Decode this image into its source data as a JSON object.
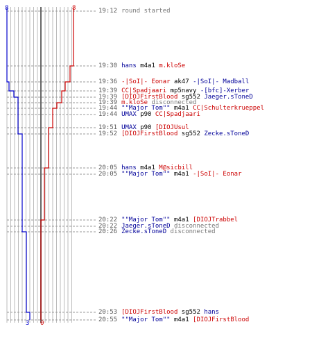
{
  "colors": {
    "team_red": "#cc0000",
    "team_blue": "#0000cc",
    "divider": "#666666",
    "grid": "#bbbbbb"
  },
  "counts": {
    "blue_start": "8",
    "red_start": "8",
    "blue_end": "3",
    "red_end": "0"
  },
  "events": [
    {
      "time": "19:12",
      "parts": [
        {
          "text": "round started",
          "color": "gray"
        }
      ]
    },
    {
      "time": "19:30",
      "parts": [
        {
          "text": "hans",
          "color": "blue"
        },
        {
          "text": " m4a1 ",
          "color": "black"
        },
        {
          "text": "m.kloSe",
          "color": "red"
        }
      ]
    },
    {
      "time": "19:36",
      "parts": [
        {
          "text": "-|SoI|- Eonar",
          "color": "red"
        },
        {
          "text": " ak47 ",
          "color": "black"
        },
        {
          "text": "-|SoI|- Madball",
          "color": "blue"
        }
      ]
    },
    {
      "time": "19:39",
      "parts": [
        {
          "text": "CC|Spadjaari",
          "color": "red"
        },
        {
          "text": " mp5navy ",
          "color": "black"
        },
        {
          "text": "-[bfc]-Xerber",
          "color": "blue"
        }
      ]
    },
    {
      "time": "19:39",
      "parts": [
        {
          "text": "[DIOJFirstBlood",
          "color": "red"
        },
        {
          "text": " sg552 ",
          "color": "black"
        },
        {
          "text": "Jaeger.sToneD",
          "color": "blue"
        }
      ]
    },
    {
      "time": "19:39",
      "parts": [
        {
          "text": "m.kloSe",
          "color": "red"
        },
        {
          "text": " disconnected",
          "color": "gray"
        }
      ]
    },
    {
      "time": "19:44",
      "parts": [
        {
          "text": "\"\"Major Tom\"\"",
          "color": "blue"
        },
        {
          "text": " m4a1 ",
          "color": "black"
        },
        {
          "text": "CC|Schulterkrueppel",
          "color": "red"
        }
      ]
    },
    {
      "time": "19:44",
      "parts": [
        {
          "text": "UMAX",
          "color": "blue"
        },
        {
          "text": " p90 ",
          "color": "black"
        },
        {
          "text": "CC|Spadjaari",
          "color": "red"
        }
      ]
    },
    {
      "time": "19:51",
      "parts": [
        {
          "text": "UMAX",
          "color": "blue"
        },
        {
          "text": " p90 ",
          "color": "black"
        },
        {
          "text": "[DIOJUsul",
          "color": "red"
        }
      ]
    },
    {
      "time": "19:52",
      "parts": [
        {
          "text": "[DIOJFirstBlood",
          "color": "red"
        },
        {
          "text": " sg552 ",
          "color": "black"
        },
        {
          "text": "Zecke.sToneD",
          "color": "blue"
        }
      ]
    },
    {
      "time": "20:05",
      "parts": [
        {
          "text": "hans",
          "color": "blue"
        },
        {
          "text": " m4a1 ",
          "color": "black"
        },
        {
          "text": "M@sicbill",
          "color": "red"
        }
      ]
    },
    {
      "time": "20:05",
      "parts": [
        {
          "text": "\"\"Major Tom\"\"",
          "color": "blue"
        },
        {
          "text": " m4a1 ",
          "color": "black"
        },
        {
          "text": "-|SoI|- Eonar",
          "color": "red"
        }
      ]
    },
    {
      "time": "20:22",
      "parts": [
        {
          "text": "\"\"Major Tom\"\"",
          "color": "blue"
        },
        {
          "text": " m4a1 ",
          "color": "black"
        },
        {
          "text": "[DIOJTrabbel",
          "color": "red"
        }
      ]
    },
    {
      "time": "20:22",
      "parts": [
        {
          "text": "Jaeger.sToneD",
          "color": "blue"
        },
        {
          "text": " disconnected",
          "color": "gray"
        }
      ]
    },
    {
      "time": "20:26",
      "parts": [
        {
          "text": "Zecke.sToneD",
          "color": "blue"
        },
        {
          "text": " disconnected",
          "color": "gray"
        }
      ]
    },
    {
      "time": "20:53",
      "parts": [
        {
          "text": "[DIOJFirstBlood",
          "color": "red"
        },
        {
          "text": " sg552 ",
          "color": "black"
        },
        {
          "text": "hans",
          "color": "blue"
        }
      ]
    },
    {
      "time": "20:55",
      "parts": [
        {
          "text": "\"\"Major Tom\"\"",
          "color": "blue"
        },
        {
          "text": " m4a1 ",
          "color": "black"
        },
        {
          "text": "[DIOJFirstBlood",
          "color": "red"
        }
      ]
    }
  ]
}
